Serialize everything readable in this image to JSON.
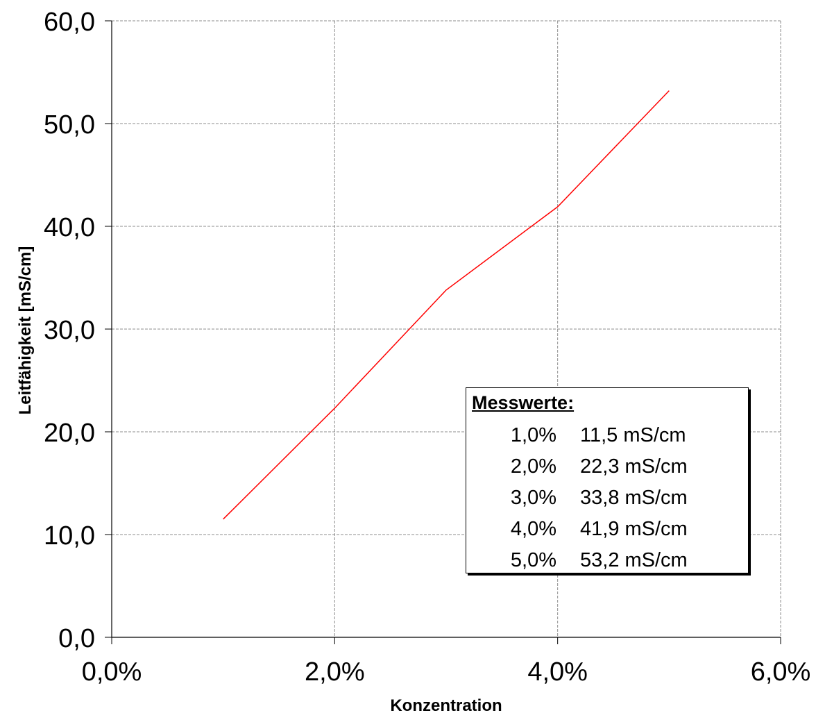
{
  "chart_data": {
    "type": "line",
    "xlabel": "Konzentration",
    "ylabel": "Leitfähigkeit  [mS/cm]",
    "xlim": [
      0,
      6
    ],
    "ylim": [
      0,
      60
    ],
    "x_ticks": [
      "0,0%",
      "2,0%",
      "4,0%",
      "6,0%"
    ],
    "x_tick_values": [
      0,
      2,
      4,
      6
    ],
    "y_ticks": [
      "0,0",
      "10,0",
      "20,0",
      "30,0",
      "40,0",
      "50,0",
      "60,0"
    ],
    "y_tick_values": [
      0,
      10,
      20,
      30,
      40,
      50,
      60
    ],
    "grid": true,
    "series": [
      {
        "x": [
          1,
          2,
          3,
          4,
          5
        ],
        "y": [
          11.5,
          22.3,
          33.8,
          41.9,
          53.2
        ],
        "color": "#ff0000"
      }
    ],
    "annotation": {
      "title": "Messwerte:",
      "rows": [
        {
          "conc": "1,0%",
          "value": "11,5 mS/cm"
        },
        {
          "conc": "2,0%",
          "value": "22,3 mS/cm"
        },
        {
          "conc": "3,0%",
          "value": "33,8 mS/cm"
        },
        {
          "conc": "4,0%",
          "value": "41,9 mS/cm"
        },
        {
          "conc": "5,0%",
          "value": "53,2 mS/cm"
        }
      ]
    }
  }
}
